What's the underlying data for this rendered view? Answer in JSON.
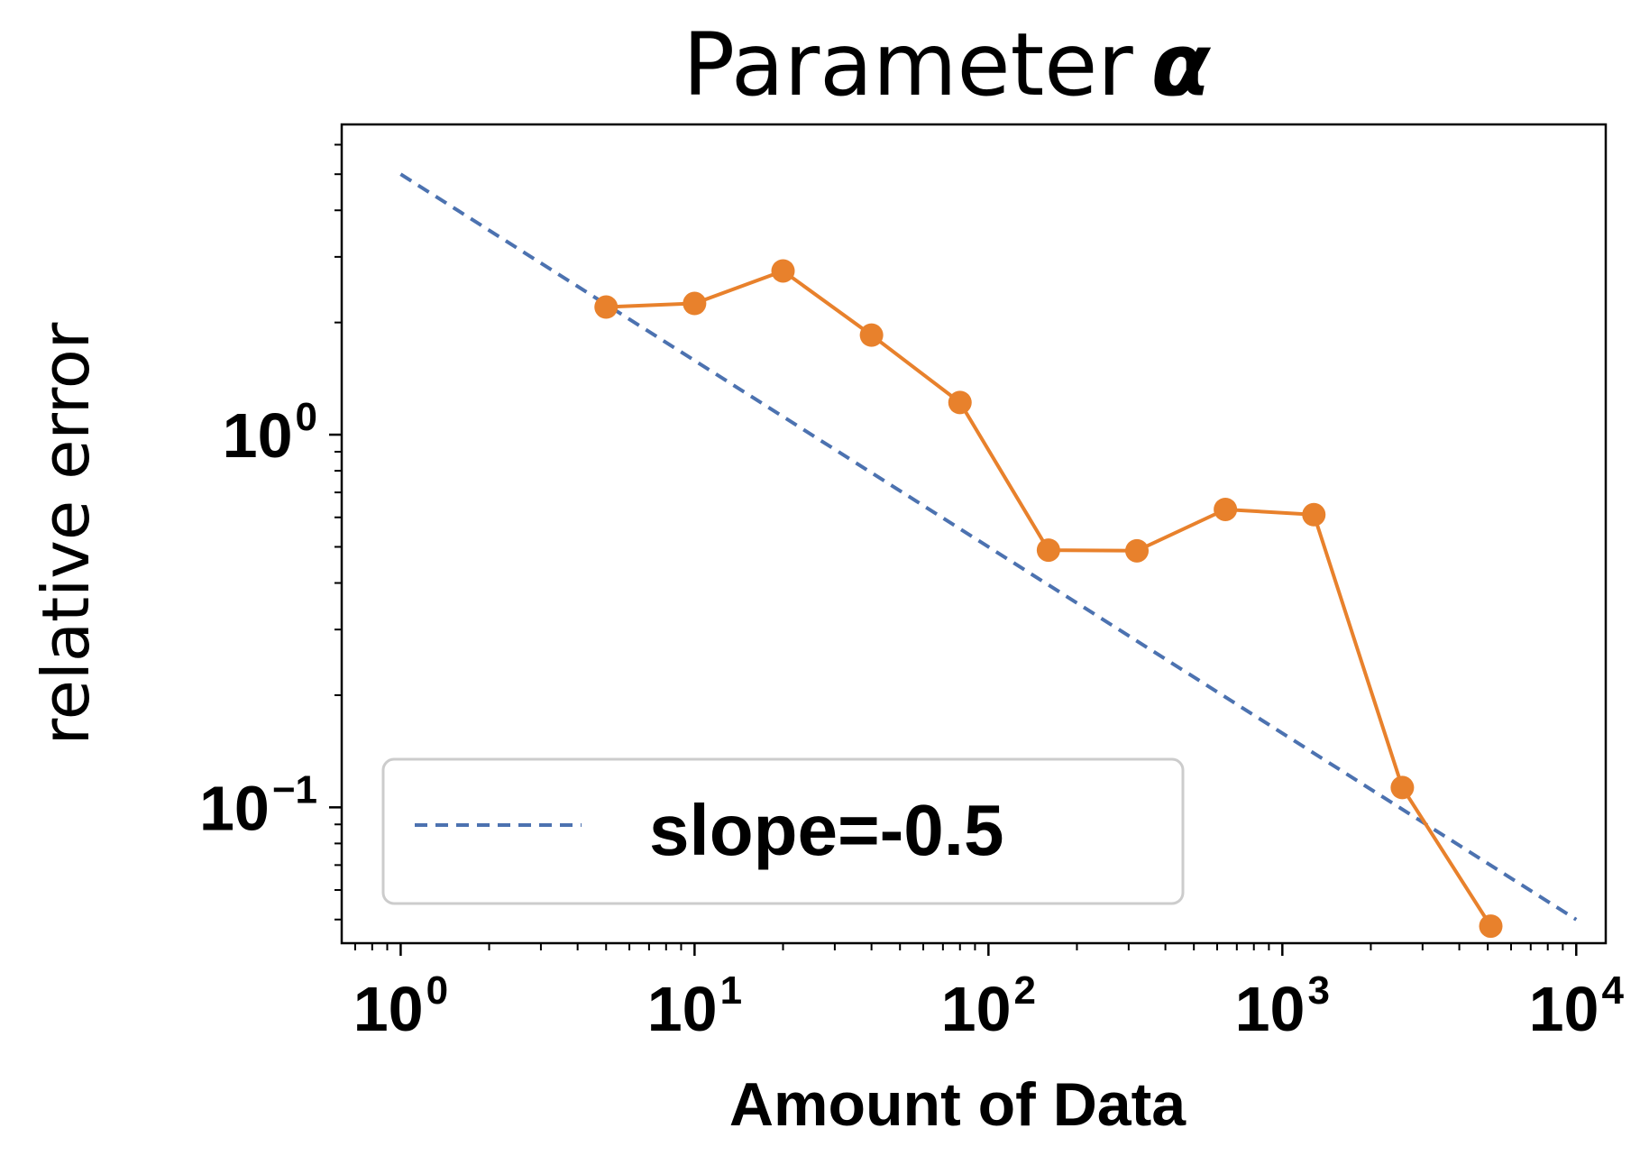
{
  "chart_data": {
    "type": "line",
    "title": "Parameter",
    "title_symbol": "α",
    "xlabel": "Amount of Data",
    "ylabel": "relative error",
    "xscale": "log",
    "yscale": "log",
    "xlim": [
      0.63,
      12600
    ],
    "ylim": [
      0.0432,
      6.8
    ],
    "x_ticks": [
      {
        "value": 1,
        "base": "10",
        "exp": "0"
      },
      {
        "value": 10,
        "base": "10",
        "exp": "1"
      },
      {
        "value": 100,
        "base": "10",
        "exp": "2"
      },
      {
        "value": 1000,
        "base": "10",
        "exp": "3"
      },
      {
        "value": 10000,
        "base": "10",
        "exp": "4"
      }
    ],
    "y_ticks": [
      {
        "value": 1,
        "base": "10",
        "exp": "0"
      },
      {
        "value": 0.1,
        "base": "10",
        "exp": "−1"
      }
    ],
    "grid": false,
    "legend_position": "lower-left",
    "series": [
      {
        "name": "slope=-0.5",
        "style": "dashed",
        "color": "#4c72b0",
        "x": [
          1,
          10000
        ],
        "y": [
          5.0,
          0.05
        ]
      },
      {
        "style": "solid-with-markers",
        "color": "#e8812c",
        "x": [
          5,
          10,
          20,
          40,
          80,
          160,
          320,
          640,
          1280,
          2560,
          5120
        ],
        "y": [
          2.2,
          2.25,
          2.75,
          1.85,
          1.22,
          0.49,
          0.488,
          0.63,
          0.61,
          0.113,
          0.048
        ]
      }
    ]
  }
}
